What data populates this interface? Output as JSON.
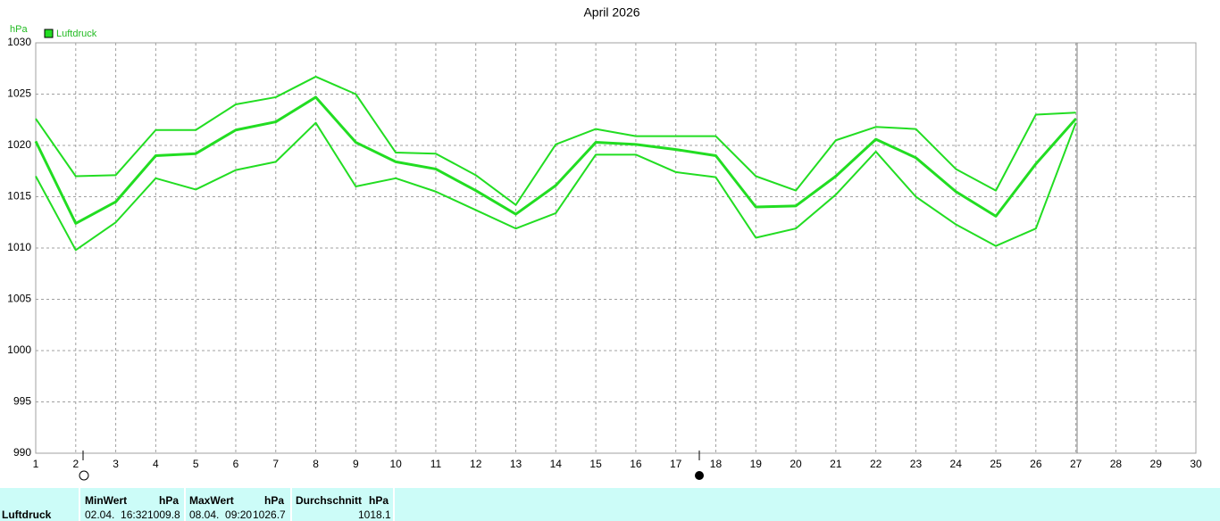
{
  "chart_data": {
    "type": "line",
    "title": "April 2026",
    "ylabel": "hPa",
    "legend": "Luftdruck",
    "grid": true,
    "x": [
      1,
      2,
      3,
      4,
      5,
      6,
      7,
      8,
      9,
      10,
      11,
      12,
      13,
      14,
      15,
      16,
      17,
      18,
      19,
      20,
      21,
      22,
      23,
      24,
      25,
      26,
      27,
      28,
      29,
      30
    ],
    "xlim": [
      1,
      30
    ],
    "xticks": [
      1,
      2,
      3,
      4,
      5,
      6,
      7,
      8,
      9,
      10,
      11,
      12,
      13,
      14,
      15,
      16,
      17,
      18,
      19,
      20,
      21,
      22,
      23,
      24,
      25,
      26,
      27,
      28,
      29,
      30
    ],
    "ylim": [
      990,
      1030
    ],
    "yticks": [
      990,
      995,
      1000,
      1005,
      1010,
      1015,
      1020,
      1025,
      1030
    ],
    "series": [
      {
        "color": "#22dd22",
        "values": [
          1022.6,
          1017.0,
          1017.1,
          1021.5,
          1021.5,
          1024.0,
          1024.7,
          1026.7,
          1025.0,
          1019.3,
          1019.2,
          1017.1,
          1014.2,
          1020.1,
          1021.6,
          1020.9,
          1020.9,
          1020.9,
          1017.0,
          1015.6,
          1020.5,
          1021.8,
          1021.6,
          1017.7,
          1015.6,
          1023.0,
          1023.2,
          null,
          null,
          null
        ]
      },
      {
        "color": "#22dd22",
        "values": [
          1020.4,
          1012.4,
          1014.5,
          1019.0,
          1019.2,
          1021.5,
          1022.3,
          1024.7,
          1020.3,
          1018.4,
          1017.7,
          1015.6,
          1013.3,
          1016.1,
          1020.3,
          1020.1,
          1019.6,
          1019.0,
          1014.0,
          1014.1,
          1017.0,
          1020.6,
          1018.8,
          1015.5,
          1013.1,
          1018.2,
          1022.6,
          null,
          null,
          null
        ]
      },
      {
        "color": "#22dd22",
        "values": [
          1017.0,
          1009.8,
          1012.5,
          1016.8,
          1015.7,
          1017.6,
          1018.4,
          1022.2,
          1016.0,
          1016.8,
          1015.5,
          1013.7,
          1011.9,
          1013.4,
          1019.1,
          1019.1,
          1017.4,
          1016.9,
          1011.0,
          1011.9,
          1015.2,
          1019.4,
          1015.0,
          1012.3,
          1010.2,
          1011.9,
          1022.2,
          null,
          null,
          null
        ]
      }
    ]
  },
  "summary": {
    "name": "Luftdruck",
    "columns": [
      {
        "header": "MinWert",
        "unit": "hPa",
        "time": "02.04.  16:32",
        "value": 1009.8
      },
      {
        "header": "MaxWert",
        "unit": "hPa",
        "time": "08.04.  09:20",
        "value": 1026.7
      },
      {
        "header": "Durchschnitt",
        "unit": "hPa",
        "value": 1018.1
      }
    ]
  }
}
